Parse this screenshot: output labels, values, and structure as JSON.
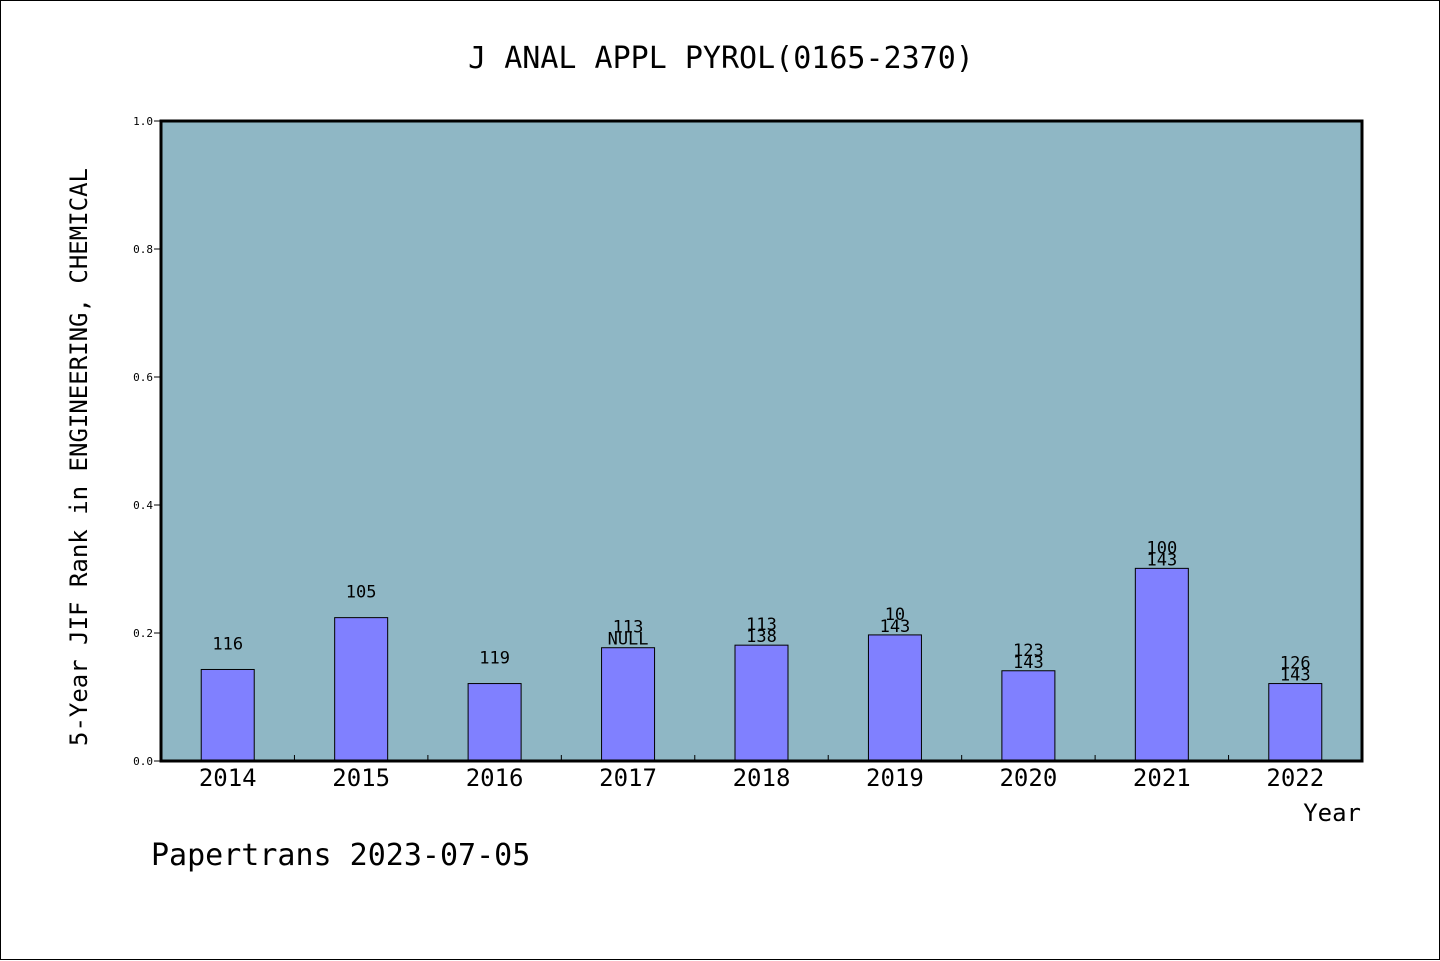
{
  "chart_data": {
    "type": "bar",
    "title": "J ANAL APPL PYROL(0165-2370)",
    "xlabel": "Year",
    "ylabel": "5-Year JIF Rank in ENGINEERING, CHEMICAL",
    "categories": [
      "2014",
      "2015",
      "2016",
      "2017",
      "2018",
      "2019",
      "2020",
      "2021",
      "2022"
    ],
    "values": [
      0.143,
      0.224,
      0.121,
      0.177,
      0.181,
      0.197,
      0.141,
      0.301,
      0.121
    ],
    "labels": [
      [
        "116"
      ],
      [
        "105"
      ],
      [
        "119"
      ],
      [
        "113",
        "NULL"
      ],
      [
        "113",
        "138"
      ],
      [
        "10",
        "143"
      ],
      [
        "123",
        "143"
      ],
      [
        "100",
        "143"
      ],
      [
        "126",
        "143"
      ]
    ],
    "ylim": [
      0,
      1
    ],
    "yticks": [
      "0.0",
      "0.2",
      "0.4",
      "0.6",
      "0.8",
      "1.0"
    ],
    "grid": false,
    "colors": {
      "plot_bg": "#8fb7c5",
      "bar": "#8080ff",
      "bar_edge": "#000000"
    }
  },
  "footer": "Papertrans 2023-07-05"
}
